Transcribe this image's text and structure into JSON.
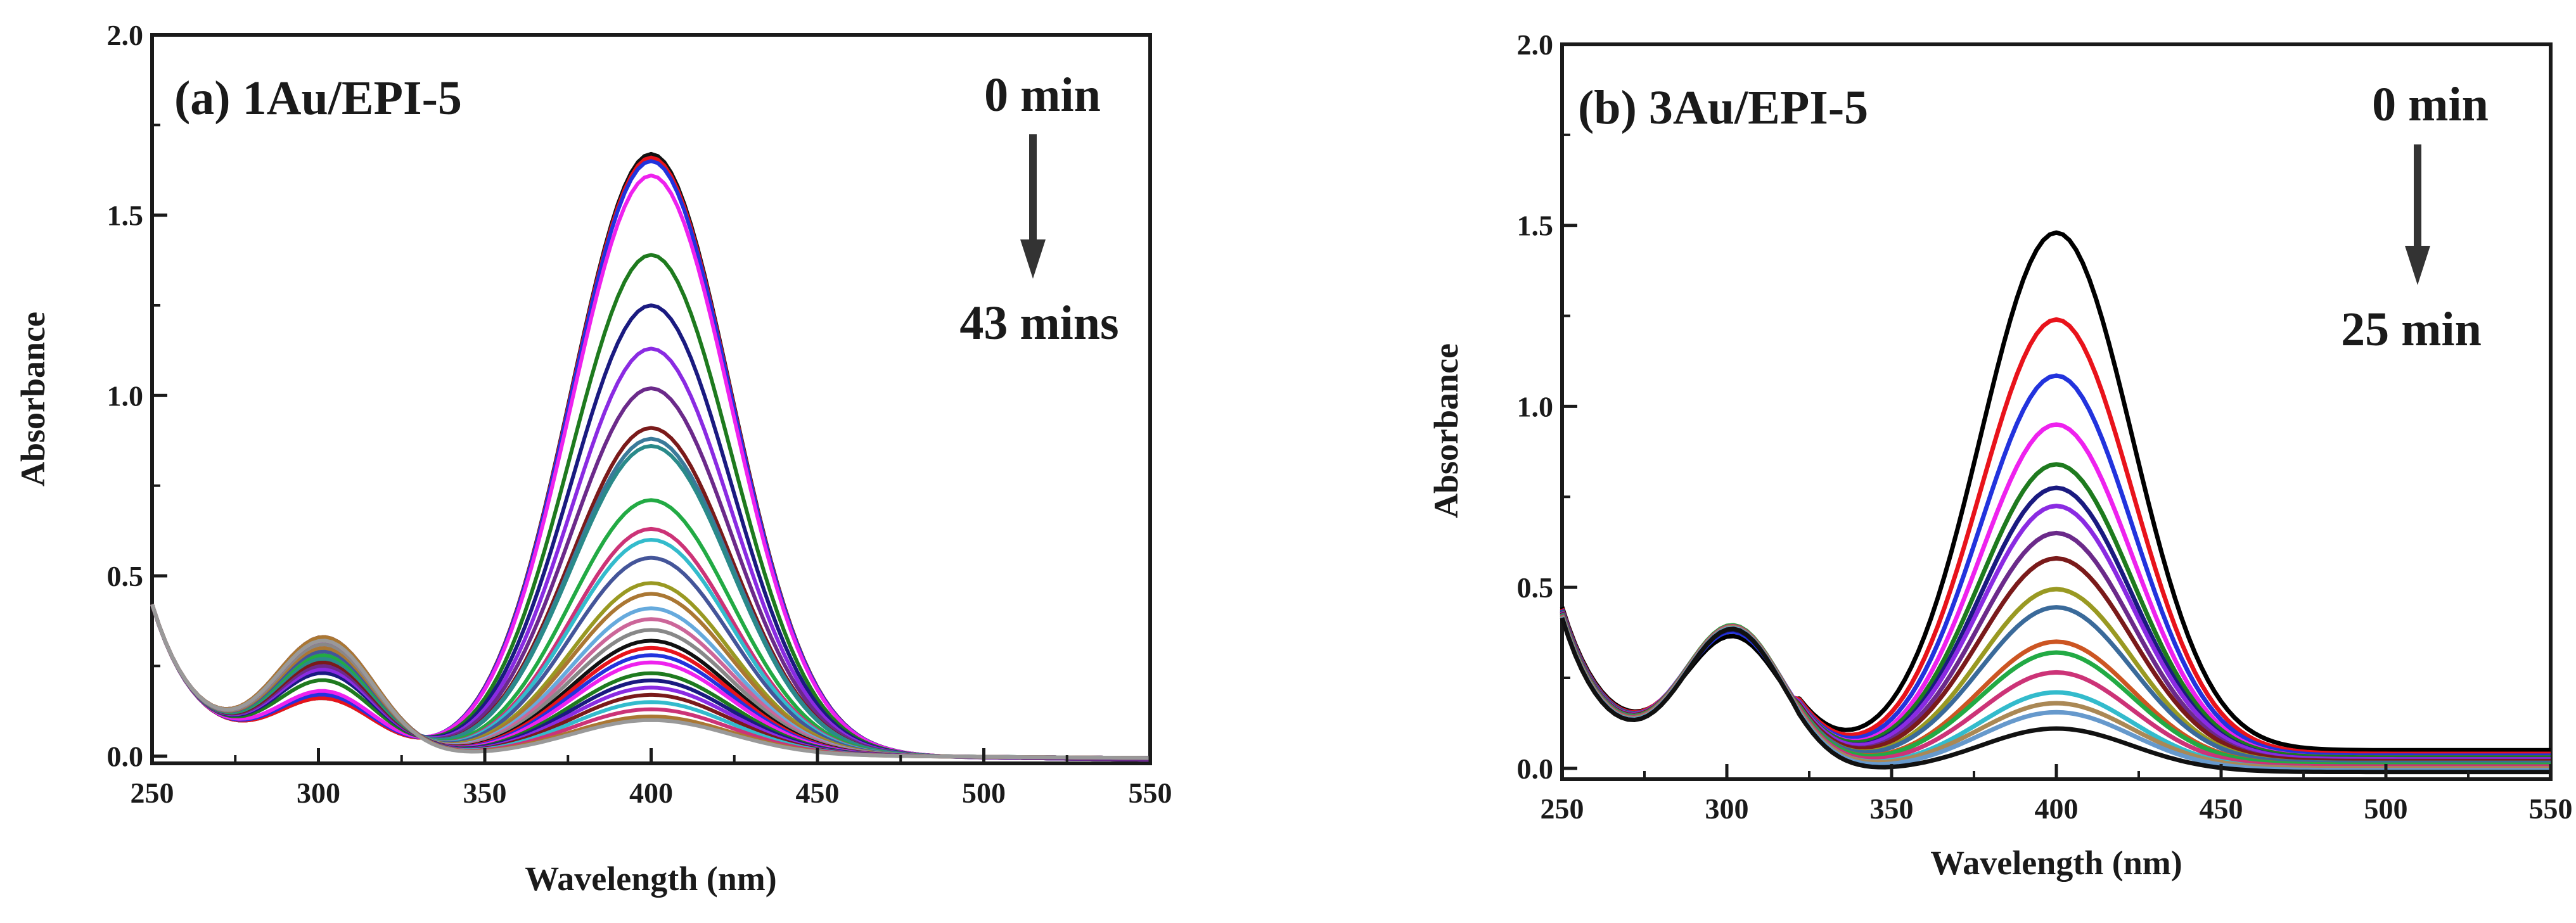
{
  "chart_data": [
    {
      "type": "line",
      "title": "(a) 1Au/EPI-5",
      "xlabel": "Wavelength (nm)",
      "ylabel": "Absorbance",
      "xlim": [
        250,
        550
      ],
      "ylim": [
        -0.02,
        2.0
      ],
      "xticks": [
        250,
        300,
        350,
        400,
        450,
        500,
        550
      ],
      "yticks": [
        0.0,
        0.5,
        1.0,
        1.5,
        2.0
      ],
      "xtick_labels": [
        "250",
        "300",
        "350",
        "400",
        "450",
        "500",
        "550"
      ],
      "ytick_labels": [
        "0.0",
        "0.5",
        "1.0",
        "1.5",
        "2.0"
      ],
      "grid": false,
      "legend": "none",
      "annotation": {
        "start": "0 min",
        "end": "43 mins",
        "direction": "down"
      },
      "model_note": "Each spectrum: absorbance at 300 nm shoulder, 400 nm peak height, baseline",
      "series": [
        {
          "name": "s1",
          "color": "#111111",
          "peak": 1.67,
          "shoulder": 0.15,
          "baseline": 0.0
        },
        {
          "name": "s2",
          "color": "#e8131b",
          "peak": 1.66,
          "shoulder": 0.15,
          "baseline": 0.0
        },
        {
          "name": "s3",
          "color": "#2233dd",
          "peak": 1.65,
          "shoulder": 0.16,
          "baseline": 0.0
        },
        {
          "name": "s4",
          "color": "#ee22ee",
          "peak": 1.61,
          "shoulder": 0.17,
          "baseline": 0.0
        },
        {
          "name": "s5",
          "color": "#1e7a1e",
          "peak": 1.39,
          "shoulder": 0.2,
          "baseline": 0.0
        },
        {
          "name": "s6",
          "color": "#1a1a80",
          "peak": 1.25,
          "shoulder": 0.22,
          "baseline": 0.0
        },
        {
          "name": "s7",
          "color": "#8a2be2",
          "peak": 1.13,
          "shoulder": 0.23,
          "baseline": 0.0
        },
        {
          "name": "s8",
          "color": "#6b2a8a",
          "peak": 1.02,
          "shoulder": 0.24,
          "baseline": 0.0
        },
        {
          "name": "s9",
          "color": "#7a1a1a",
          "peak": 0.91,
          "shoulder": 0.25,
          "baseline": 0.0
        },
        {
          "name": "s10",
          "color": "#3a7a9a",
          "peak": 0.88,
          "shoulder": 0.26,
          "baseline": 0.0
        },
        {
          "name": "s11",
          "color": "#2a8a8a",
          "peak": 0.86,
          "shoulder": 0.26,
          "baseline": 0.0
        },
        {
          "name": "s12",
          "color": "#22aa44",
          "peak": 0.71,
          "shoulder": 0.27,
          "baseline": 0.0
        },
        {
          "name": "s13",
          "color": "#cc3377",
          "peak": 0.63,
          "shoulder": 0.28,
          "baseline": 0.0
        },
        {
          "name": "s14",
          "color": "#33bbcc",
          "peak": 0.6,
          "shoulder": 0.28,
          "baseline": 0.0
        },
        {
          "name": "s15",
          "color": "#445599",
          "peak": 0.55,
          "shoulder": 0.28,
          "baseline": 0.0
        },
        {
          "name": "s16",
          "color": "#999922",
          "peak": 0.48,
          "shoulder": 0.29,
          "baseline": 0.0
        },
        {
          "name": "s17",
          "color": "#aa7733",
          "peak": 0.45,
          "shoulder": 0.29,
          "baseline": 0.0
        },
        {
          "name": "s18",
          "color": "#66aadd",
          "peak": 0.41,
          "shoulder": 0.3,
          "baseline": 0.0
        },
        {
          "name": "s19",
          "color": "#cc6699",
          "peak": 0.38,
          "shoulder": 0.3,
          "baseline": 0.0
        },
        {
          "name": "s20",
          "color": "#888888",
          "peak": 0.35,
          "shoulder": 0.3,
          "baseline": 0.0
        },
        {
          "name": "s21",
          "color": "#111111",
          "peak": 0.32,
          "shoulder": 0.31,
          "baseline": 0.0
        },
        {
          "name": "s22",
          "color": "#e8131b",
          "peak": 0.3,
          "shoulder": 0.31,
          "baseline": 0.0
        },
        {
          "name": "s23",
          "color": "#2233dd",
          "peak": 0.28,
          "shoulder": 0.31,
          "baseline": 0.0
        },
        {
          "name": "s24",
          "color": "#ee22ee",
          "peak": 0.26,
          "shoulder": 0.31,
          "baseline": 0.0
        },
        {
          "name": "s25",
          "color": "#1e7a1e",
          "peak": 0.23,
          "shoulder": 0.32,
          "baseline": 0.0
        },
        {
          "name": "s26",
          "color": "#1a1a80",
          "peak": 0.21,
          "shoulder": 0.32,
          "baseline": 0.0
        },
        {
          "name": "s27",
          "color": "#8a2be2",
          "peak": 0.19,
          "shoulder": 0.32,
          "baseline": 0.0
        },
        {
          "name": "s28",
          "color": "#7a1a1a",
          "peak": 0.17,
          "shoulder": 0.32,
          "baseline": 0.0
        },
        {
          "name": "s29",
          "color": "#33bbcc",
          "peak": 0.15,
          "shoulder": 0.32,
          "baseline": 0.0
        },
        {
          "name": "s30",
          "color": "#cc3377",
          "peak": 0.13,
          "shoulder": 0.32,
          "baseline": 0.0
        },
        {
          "name": "s31",
          "color": "#aa7733",
          "peak": 0.11,
          "shoulder": 0.32,
          "baseline": 0.0
        },
        {
          "name": "s32",
          "color": "#999999",
          "peak": 0.1,
          "shoulder": 0.31,
          "baseline": 0.0
        }
      ]
    },
    {
      "type": "line",
      "title": "(b) 3Au/EPI-5",
      "xlabel": "Wavelength (nm)",
      "ylabel": "Absorbance",
      "xlim": [
        250,
        550
      ],
      "ylim": [
        -0.03,
        2.0
      ],
      "xticks": [
        250,
        300,
        350,
        400,
        450,
        500,
        550
      ],
      "yticks": [
        0.0,
        0.5,
        1.0,
        1.5,
        2.0
      ],
      "xtick_labels": [
        "250",
        "300",
        "350",
        "400",
        "450",
        "500",
        "550"
      ],
      "ytick_labels": [
        "0.0",
        "0.5",
        "1.0",
        "1.5",
        "2.0"
      ],
      "grid": false,
      "legend": "none",
      "annotation": {
        "start": "0 min",
        "end": "25 min",
        "direction": "down"
      },
      "model_note": "Each spectrum: absorbance at 300 nm shoulder, 400 nm peak height, baseline",
      "series": [
        {
          "name": "s1",
          "color": "#000000",
          "peak": 1.43,
          "shoulder": 0.33,
          "baseline": 0.05
        },
        {
          "name": "s2",
          "color": "#e8131b",
          "peak": 1.2,
          "shoulder": 0.35,
          "baseline": 0.04
        },
        {
          "name": "s3",
          "color": "#2233dd",
          "peak": 1.05,
          "shoulder": 0.35,
          "baseline": 0.035
        },
        {
          "name": "s4",
          "color": "#ee22ee",
          "peak": 0.92,
          "shoulder": 0.36,
          "baseline": 0.03
        },
        {
          "name": "s5",
          "color": "#1e7a1e",
          "peak": 0.81,
          "shoulder": 0.36,
          "baseline": 0.03
        },
        {
          "name": "s6",
          "color": "#1a1a80",
          "peak": 0.75,
          "shoulder": 0.36,
          "baseline": 0.025
        },
        {
          "name": "s7",
          "color": "#8a2be2",
          "peak": 0.7,
          "shoulder": 0.37,
          "baseline": 0.025
        },
        {
          "name": "s8",
          "color": "#6b2a8a",
          "peak": 0.63,
          "shoulder": 0.37,
          "baseline": 0.02
        },
        {
          "name": "s9",
          "color": "#7a1a1a",
          "peak": 0.56,
          "shoulder": 0.37,
          "baseline": 0.02
        },
        {
          "name": "s10",
          "color": "#999922",
          "peak": 0.48,
          "shoulder": 0.37,
          "baseline": 0.015
        },
        {
          "name": "s11",
          "color": "#3a6a9a",
          "peak": 0.43,
          "shoulder": 0.37,
          "baseline": 0.015
        },
        {
          "name": "s12",
          "color": "#cc5522",
          "peak": 0.34,
          "shoulder": 0.38,
          "baseline": 0.01
        },
        {
          "name": "s13",
          "color": "#22aa44",
          "peak": 0.31,
          "shoulder": 0.38,
          "baseline": 0.01
        },
        {
          "name": "s14",
          "color": "#cc3377",
          "peak": 0.26,
          "shoulder": 0.38,
          "baseline": 0.005
        },
        {
          "name": "s15",
          "color": "#33bbcc",
          "peak": 0.21,
          "shoulder": 0.38,
          "baseline": 0.0
        },
        {
          "name": "s16",
          "color": "#aa8855",
          "peak": 0.18,
          "shoulder": 0.38,
          "baseline": 0.0
        },
        {
          "name": "s17",
          "color": "#6699cc",
          "peak": 0.16,
          "shoulder": 0.38,
          "baseline": -0.005
        },
        {
          "name": "s18",
          "color": "#111111",
          "peak": 0.12,
          "shoulder": 0.38,
          "baseline": -0.01
        }
      ]
    }
  ]
}
